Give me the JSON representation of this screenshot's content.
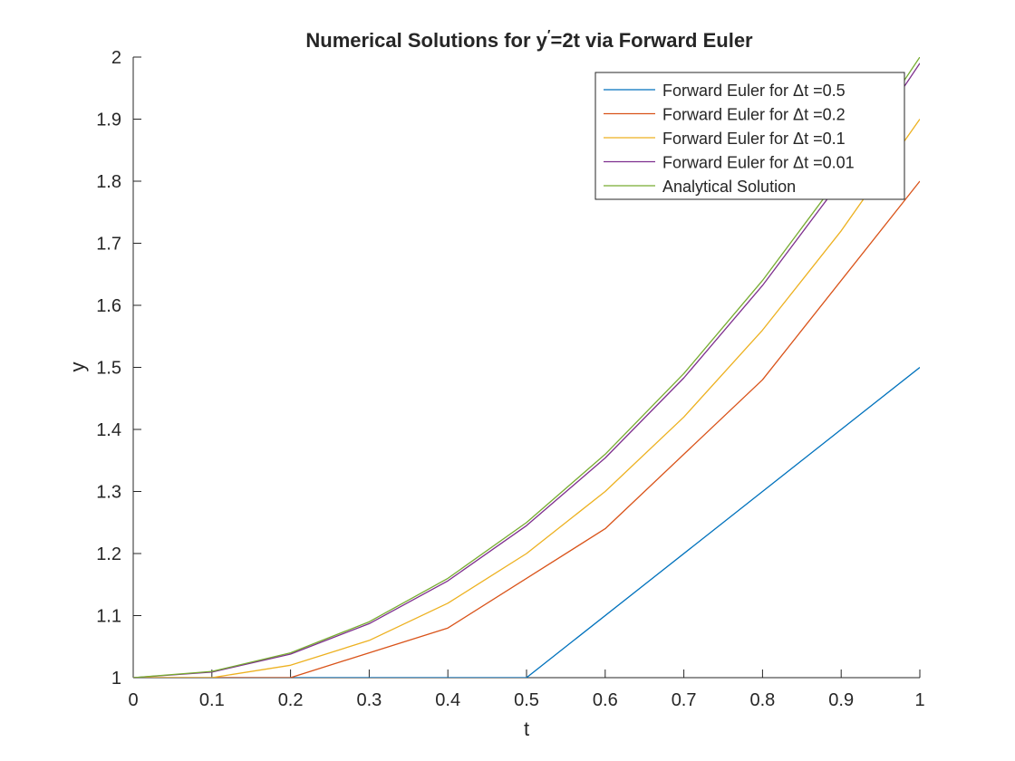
{
  "chart_data": {
    "type": "line",
    "title_main": "Numerical Solutions for y",
    "title_prime": "′",
    "title_rest": "=2t via Forward Euler",
    "xlabel": "t",
    "ylabel": "y",
    "xlim": [
      0,
      1
    ],
    "ylim": [
      1,
      2
    ],
    "xticks": [
      0,
      0.1,
      0.2,
      0.3,
      0.4,
      0.5,
      0.6,
      0.7,
      0.8,
      0.9,
      1
    ],
    "xtick_labels": [
      "0",
      "0.1",
      "0.2",
      "0.3",
      "0.4",
      "0.5",
      "0.6",
      "0.7",
      "0.8",
      "0.9",
      "1"
    ],
    "yticks": [
      1,
      1.1,
      1.2,
      1.3,
      1.4,
      1.5,
      1.6,
      1.7,
      1.8,
      1.9,
      2
    ],
    "ytick_labels": [
      "1",
      "1.1",
      "1.2",
      "1.3",
      "1.4",
      "1.5",
      "1.6",
      "1.7",
      "1.8",
      "1.9",
      "2"
    ],
    "grid": false,
    "legend_position": "top-right",
    "series": [
      {
        "name": "Forward Euler for Δt =0.5",
        "color": "#0072BD",
        "x": [
          0,
          0.5,
          1
        ],
        "y": [
          1,
          1,
          1.5
        ]
      },
      {
        "name": "Forward Euler for Δt =0.2",
        "color": "#D95319",
        "x": [
          0,
          0.2,
          0.4,
          0.6,
          0.8,
          1
        ],
        "y": [
          1,
          1,
          1.08,
          1.24,
          1.48,
          1.8
        ]
      },
      {
        "name": "Forward Euler for Δt =0.1",
        "color": "#EDB120",
        "x": [
          0,
          0.1,
          0.2,
          0.3,
          0.4,
          0.5,
          0.6,
          0.7,
          0.8,
          0.9,
          1
        ],
        "y": [
          1,
          1,
          1.02,
          1.06,
          1.12,
          1.2,
          1.3,
          1.42,
          1.56,
          1.72,
          1.9
        ]
      },
      {
        "name": "Forward Euler for Δt =0.01",
        "color": "#7E2F8E",
        "x": [
          0,
          0.1,
          0.2,
          0.3,
          0.4,
          0.5,
          0.6,
          0.7,
          0.8,
          0.9,
          1
        ],
        "y": [
          1,
          1.009,
          1.038,
          1.087,
          1.156,
          1.245,
          1.354,
          1.483,
          1.632,
          1.801,
          1.99
        ]
      },
      {
        "name": "Analytical Solution",
        "color": "#77AC30",
        "x": [
          0,
          0.1,
          0.2,
          0.3,
          0.4,
          0.5,
          0.6,
          0.7,
          0.8,
          0.9,
          1
        ],
        "y": [
          1,
          1.01,
          1.04,
          1.09,
          1.16,
          1.25,
          1.36,
          1.49,
          1.64,
          1.81,
          2
        ]
      }
    ]
  }
}
